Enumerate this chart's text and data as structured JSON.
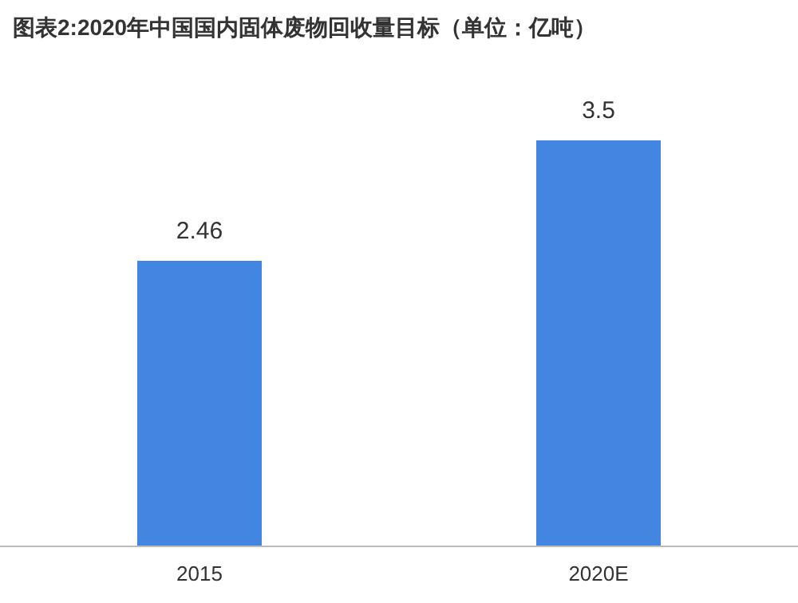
{
  "chart_data": {
    "type": "bar",
    "title": "图表2:2020年中国国内固体废物回收量目标（单位：亿吨）",
    "categories": [
      "2015",
      "2020E"
    ],
    "values": [
      2.46,
      3.5
    ],
    "color": "#4286e2",
    "data_labels": true
  }
}
